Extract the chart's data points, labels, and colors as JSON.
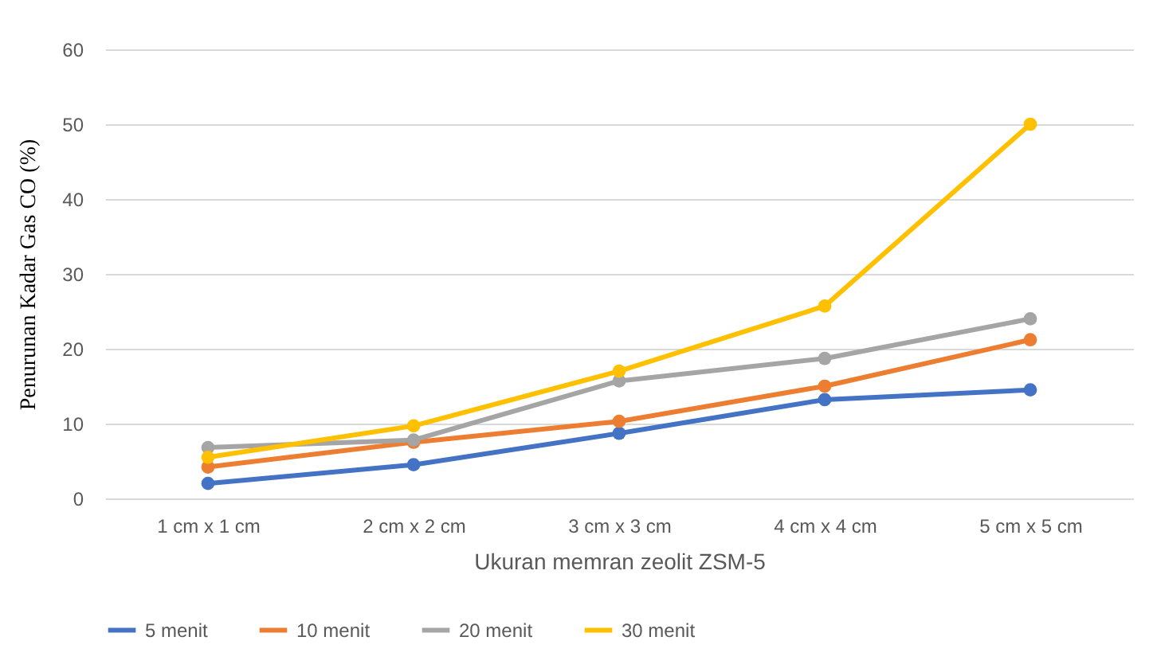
{
  "chart_data": {
    "type": "line",
    "xlabel": "Ukuran memran zeolit ZSM-5",
    "ylabel": "Penurunan Kadar Gas CO (%)",
    "categories": [
      "1 cm x 1 cm",
      "2 cm x 2 cm",
      "3 cm x 3 cm",
      "4 cm x 4 cm",
      "5 cm x 5 cm"
    ],
    "series": [
      {
        "name": "5 menit",
        "color": "#4472c4",
        "values": [
          2,
          4.5,
          8.7,
          13.2,
          14.5
        ]
      },
      {
        "name": "10 menit",
        "color": "#ed7d31",
        "values": [
          4.2,
          7.5,
          10.3,
          15,
          21.2
        ]
      },
      {
        "name": "20 menit",
        "color": "#a5a5a5",
        "values": [
          6.8,
          7.8,
          15.7,
          18.7,
          24
        ]
      },
      {
        "name": "30 menit",
        "color": "#ffc000",
        "values": [
          5.5,
          9.7,
          17,
          25.7,
          50
        ]
      }
    ],
    "ylim": [
      0,
      60
    ],
    "yticks": [
      0,
      10,
      20,
      30,
      40,
      50,
      60
    ],
    "grid": "y",
    "legend": "bottom",
    "marker": "circle",
    "line_style": "solid"
  }
}
